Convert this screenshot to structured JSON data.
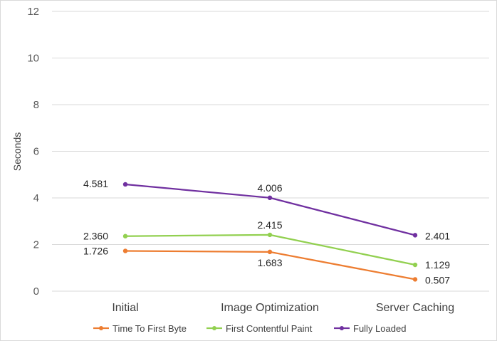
{
  "chart_data": {
    "type": "line",
    "title": "",
    "xlabel": "",
    "ylabel": "Seconds",
    "ylim": [
      0,
      12
    ],
    "yticks": [
      "0",
      "2",
      "4",
      "6",
      "8",
      "10",
      "12"
    ],
    "grid": true,
    "legend_position": "bottom",
    "categories": [
      "Initial",
      "Image Optimization",
      "Server Caching"
    ],
    "series": [
      {
        "name": "Time To First Byte",
        "color": "#ed7d31",
        "values": [
          1.726,
          1.683,
          0.507
        ],
        "labels": [
          "1.726",
          "1.683",
          "0.507"
        ]
      },
      {
        "name": "First Contentful Paint",
        "color": "#92d050",
        "values": [
          2.36,
          2.415,
          1.129
        ],
        "labels": [
          "2.360",
          "2.415",
          "1.129"
        ]
      },
      {
        "name": "Fully Loaded",
        "color": "#7030a0",
        "values": [
          4.581,
          4.006,
          2.401
        ],
        "labels": [
          "4.581",
          "4.006",
          "2.401"
        ]
      }
    ]
  }
}
